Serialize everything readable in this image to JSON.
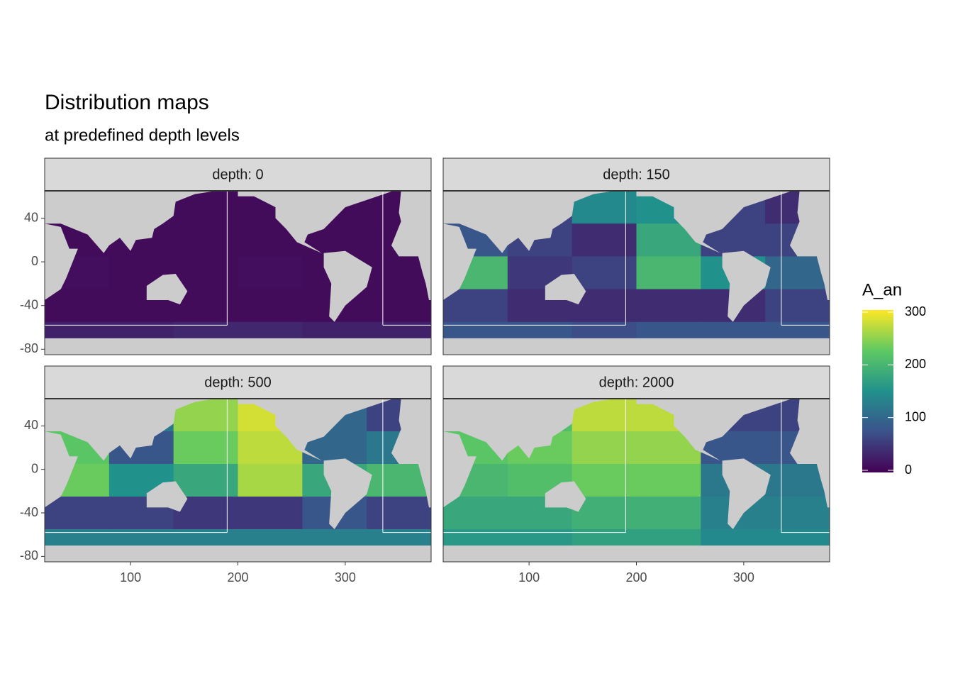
{
  "chart_data": {
    "type": "heatmap",
    "title": "Distribution maps",
    "subtitle": "at predefined depth levels",
    "x": [
      50,
      110,
      170,
      230,
      290,
      350
    ],
    "y": [
      50,
      20,
      -10,
      -40,
      -70
    ],
    "xlim": [
      20,
      380
    ],
    "ylim": [
      -85,
      65
    ],
    "xticks": [
      100,
      200,
      300
    ],
    "yticks": [
      -80,
      -40,
      0,
      40
    ],
    "colorscale": "viridis",
    "clim": [
      0,
      300
    ],
    "legend": {
      "title": "A_an",
      "ticks": [
        0,
        100,
        200,
        300
      ],
      "position": "right"
    },
    "facets": [
      {
        "label": "depth: 0",
        "values": [
          [
            10,
            10,
            10,
            10,
            10,
            10
          ],
          [
            10,
            10,
            10,
            10,
            10,
            10
          ],
          [
            12,
            10,
            10,
            12,
            10,
            10
          ],
          [
            10,
            10,
            10,
            10,
            10,
            10
          ],
          [
            30,
            30,
            35,
            35,
            30,
            30
          ]
        ]
      },
      {
        "label": "depth: 150",
        "values": [
          [
            60,
            60,
            140,
            150,
            60,
            40
          ],
          [
            80,
            60,
            40,
            180,
            60,
            60
          ],
          [
            200,
            50,
            60,
            200,
            150,
            100
          ],
          [
            60,
            40,
            40,
            40,
            40,
            60
          ],
          [
            80,
            80,
            70,
            80,
            80,
            80
          ]
        ]
      },
      {
        "label": "depth: 500",
        "values": [
          [
            150,
            120,
            250,
            280,
            100,
            60
          ],
          [
            220,
            80,
            230,
            270,
            100,
            120
          ],
          [
            230,
            150,
            180,
            260,
            180,
            200
          ],
          [
            60,
            60,
            50,
            50,
            80,
            60
          ],
          [
            130,
            130,
            130,
            130,
            130,
            130
          ]
        ]
      },
      {
        "label": "depth: 2000",
        "values": [
          [
            200,
            210,
            270,
            270,
            60,
            60
          ],
          [
            220,
            230,
            250,
            250,
            80,
            80
          ],
          [
            200,
            210,
            230,
            230,
            120,
            120
          ],
          [
            180,
            180,
            190,
            190,
            130,
            130
          ],
          [
            160,
            160,
            170,
            170,
            140,
            140
          ]
        ]
      }
    ]
  }
}
